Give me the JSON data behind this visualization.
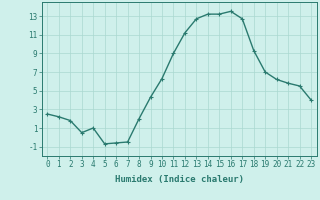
{
  "x": [
    0,
    1,
    2,
    3,
    4,
    5,
    6,
    7,
    8,
    9,
    10,
    11,
    12,
    13,
    14,
    15,
    16,
    17,
    18,
    19,
    20,
    21,
    22,
    23
  ],
  "y": [
    2.5,
    2.2,
    1.8,
    0.5,
    1.0,
    -0.7,
    -0.6,
    -0.5,
    2.0,
    4.3,
    6.3,
    9.0,
    11.2,
    12.7,
    13.2,
    13.2,
    13.5,
    12.7,
    9.3,
    7.0,
    6.2,
    5.8,
    5.5,
    4.0
  ],
  "line_color": "#2a7a6f",
  "marker": "+",
  "marker_size": 3,
  "background_color": "#cff0eb",
  "grid_color": "#aad8d0",
  "xlabel": "Humidex (Indice chaleur)",
  "xlim": [
    -0.5,
    23.5
  ],
  "ylim": [
    -2.0,
    14.5
  ],
  "yticks": [
    -1,
    1,
    3,
    5,
    7,
    9,
    11,
    13
  ],
  "xticks": [
    0,
    1,
    2,
    3,
    4,
    5,
    6,
    7,
    8,
    9,
    10,
    11,
    12,
    13,
    14,
    15,
    16,
    17,
    18,
    19,
    20,
    21,
    22,
    23
  ],
  "tick_label_fontsize": 5.5,
  "xlabel_fontsize": 6.5,
  "line_width": 1.0
}
